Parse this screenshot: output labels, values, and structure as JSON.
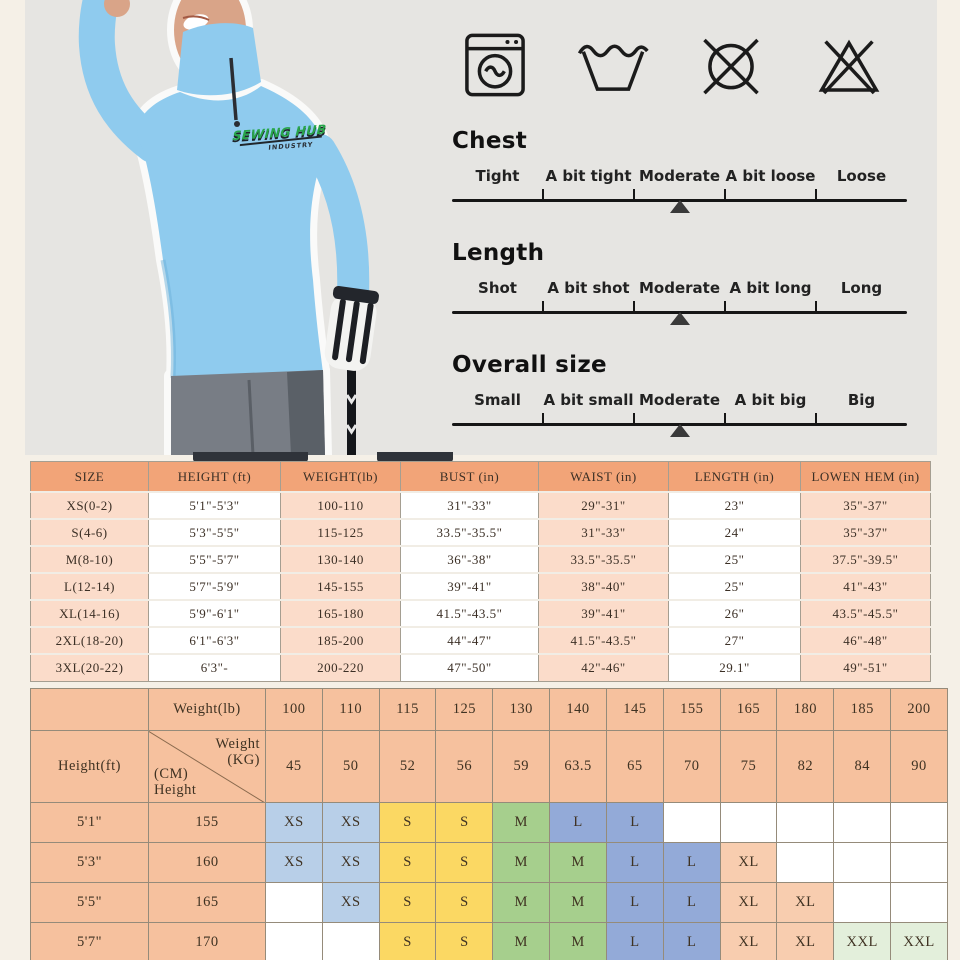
{
  "logo": {
    "line1": "SEWING HUB",
    "line2": "INDUSTRY"
  },
  "care_icons": [
    {
      "name": "machine-wash-icon"
    },
    {
      "name": "hand-wash-icon"
    },
    {
      "name": "do-not-dry-clean-icon"
    },
    {
      "name": "do-not-bleach-icon"
    }
  ],
  "fit_scales": [
    {
      "title": "Chest",
      "labels": [
        "Tight",
        "A bit tight",
        "Moderate",
        "A bit loose",
        "Loose"
      ],
      "selected_index": 2
    },
    {
      "title": "Length",
      "labels": [
        "Shot",
        "A bit shot",
        "Moderate",
        "A bit long",
        "Long"
      ],
      "selected_index": 2
    },
    {
      "title": "Overall size",
      "labels": [
        "Small",
        "A bit small",
        "Moderate",
        "A bit big",
        "Big"
      ],
      "selected_index": 2
    }
  ],
  "size_table": {
    "headers": [
      "SIZE",
      "HEIGHT (ft)",
      "WEIGHT(lb)",
      "BUST (in)",
      "WAIST (in)",
      "LENGTH (in)",
      "LOWEN HEM (in)"
    ],
    "rows": [
      [
        "XS(0-2)",
        "5'1\"-5'3\"",
        "100-110",
        "31\"-33\"",
        "29\"-31\"",
        "23\"",
        "35\"-37\""
      ],
      [
        "S(4-6)",
        "5'3\"-5'5\"",
        "115-125",
        "33.5\"-35.5\"",
        "31\"-33\"",
        "24\"",
        "35\"-37\""
      ],
      [
        "M(8-10)",
        "5'5\"-5'7\"",
        "130-140",
        "36\"-38\"",
        "33.5\"-35.5\"",
        "25\"",
        "37.5\"-39.5\""
      ],
      [
        "L(12-14)",
        "5'7\"-5'9\"",
        "145-155",
        "39\"-41\"",
        "38\"-40\"",
        "25\"",
        "41\"-43\""
      ],
      [
        "XL(14-16)",
        "5'9\"-6'1\"",
        "165-180",
        "41.5\"-43.5\"",
        "39\"-41\"",
        "26\"",
        "43.5\"-45.5\""
      ],
      [
        "2XL(18-20)",
        "6'1\"-6'3\"",
        "185-200",
        "44\"-47\"",
        "41.5\"-43.5\"",
        "27\"",
        "46\"-48\""
      ],
      [
        "3XL(20-22)",
        "6'3\"-",
        "200-220",
        "47\"-50\"",
        "42\"-46\"",
        "29.1\"",
        "49\"-51\""
      ]
    ]
  },
  "matrix_table": {
    "corner_weight_lb": "Weight(lb)",
    "corner_height_ft": "Height(ft)",
    "diag_weight_kg": "Weight (KG)",
    "diag_height_cm": "(CM) Height",
    "weights_lb": [
      "100",
      "110",
      "115",
      "125",
      "130",
      "140",
      "145",
      "155",
      "165",
      "180",
      "185",
      "200"
    ],
    "weights_kg": [
      "45",
      "50",
      "52",
      "56",
      "59",
      "63.5",
      "65",
      "70",
      "75",
      "82",
      "84",
      "90"
    ],
    "rows": [
      {
        "height_ft": "5'1\"",
        "height_cm": "155",
        "sizes": [
          "XS",
          "XS",
          "S",
          "S",
          "M",
          "L",
          "L",
          "",
          "",
          "",
          "",
          ""
        ]
      },
      {
        "height_ft": "5'3\"",
        "height_cm": "160",
        "sizes": [
          "XS",
          "XS",
          "S",
          "S",
          "M",
          "M",
          "L",
          "L",
          "XL",
          "",
          "",
          ""
        ]
      },
      {
        "height_ft": "5'5\"",
        "height_cm": "165",
        "sizes": [
          "",
          "XS",
          "S",
          "S",
          "M",
          "M",
          "L",
          "L",
          "XL",
          "XL",
          "",
          ""
        ]
      },
      {
        "height_ft": "5'7\"",
        "height_cm": "170",
        "sizes": [
          "",
          "",
          "S",
          "S",
          "M",
          "M",
          "L",
          "L",
          "XL",
          "XL",
          "XXL",
          "XXL"
        ]
      }
    ],
    "size_colors": {
      "XS": "#b8cfe8",
      "S": "#fbd863",
      "M": "#a6cf8d",
      "L": "#93aad8",
      "XL": "#f8cdaf",
      "XXL": "#e3efdb"
    }
  },
  "colors": {
    "background": "#f5f0e7",
    "panel": "#e6e5e2",
    "table_header": "#f2a478",
    "table_row_tint": "#fbdcca",
    "matrix_header": "#f6c19e",
    "shirt": "#8fcbee"
  }
}
